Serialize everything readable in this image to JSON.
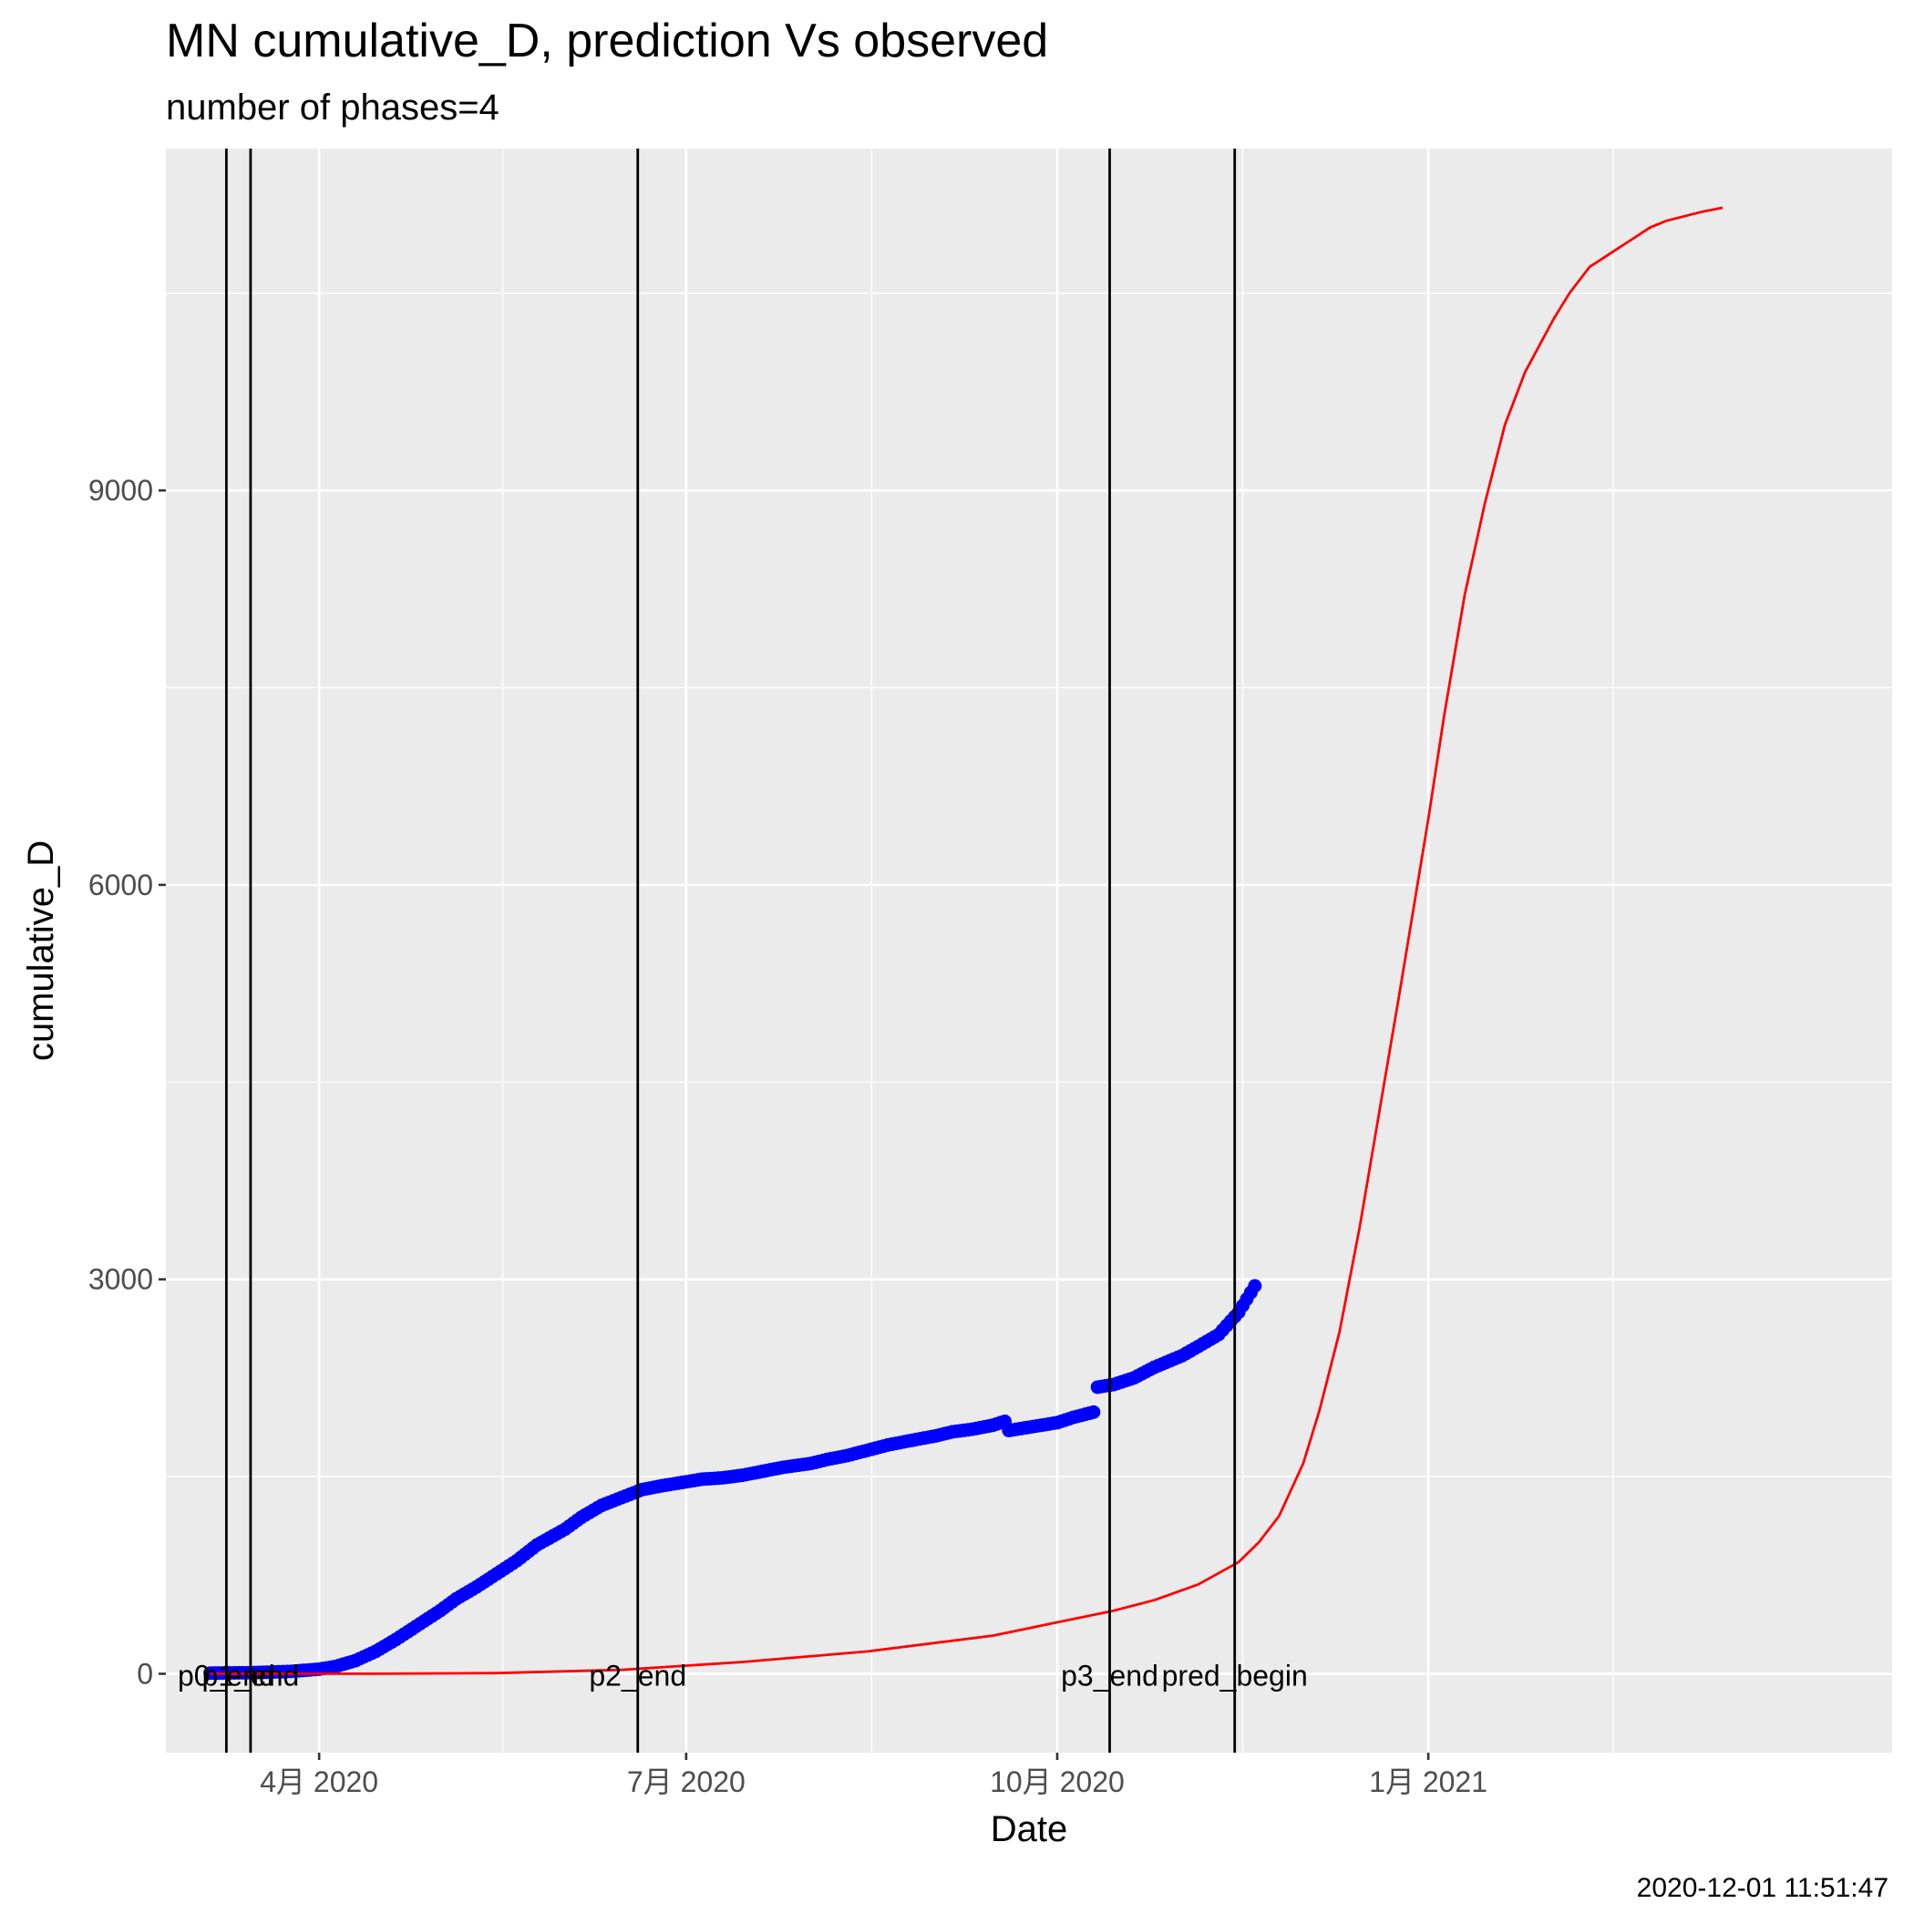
{
  "chart_data": {
    "type": "line",
    "title": "MN cumulative_D,  prediction Vs observed",
    "subtitle": "number of phases=4",
    "xlabel": "Date",
    "ylabel": "cumulative_D",
    "caption": "2020-12-01 11:51:47",
    "xlim": [
      "2020-02-23",
      "2021-04-26"
    ],
    "ylim": [
      -600,
      11600
    ],
    "grid": true,
    "x_ticks": [
      {
        "date": "2020-04-01",
        "label": "4月 2020"
      },
      {
        "date": "2020-07-01",
        "label": "7月 2020"
      },
      {
        "date": "2020-10-01",
        "label": "10月 2020"
      },
      {
        "date": "2021-01-01",
        "label": "1月 2021"
      }
    ],
    "y_ticks": [
      0,
      3000,
      6000,
      9000
    ],
    "phase_lines": [
      {
        "date": "2020-03-09",
        "label": "p0_end"
      },
      {
        "date": "2020-03-15",
        "label": "p1_end"
      },
      {
        "date": "2020-06-19",
        "label": "p2_end"
      },
      {
        "date": "2020-10-14",
        "label": "p3_end"
      },
      {
        "date": "2020-11-14",
        "label": "pred_begin"
      }
    ],
    "series": [
      {
        "color": "#0000ff",
        "style": "points",
        "x": [
          "2020-03-05",
          "2020-03-15",
          "2020-03-25",
          "2020-04-01",
          "2020-04-05",
          "2020-04-10",
          "2020-04-15",
          "2020-04-20",
          "2020-04-25",
          "2020-05-01",
          "2020-05-05",
          "2020-05-10",
          "2020-05-15",
          "2020-05-20",
          "2020-05-25",
          "2020-06-01",
          "2020-06-05",
          "2020-06-10",
          "2020-06-15",
          "2020-06-20",
          "2020-06-25",
          "2020-07-01",
          "2020-07-05",
          "2020-07-10",
          "2020-07-15",
          "2020-07-20",
          "2020-07-25",
          "2020-08-01",
          "2020-08-05",
          "2020-08-10",
          "2020-08-15",
          "2020-08-20",
          "2020-08-25",
          "2020-09-01",
          "2020-09-05",
          "2020-09-10",
          "2020-09-15",
          "2020-09-18",
          "2020-09-19",
          "2020-09-25",
          "2020-10-01",
          "2020-10-05",
          "2020-10-10",
          "2020-10-11",
          "2020-10-15",
          "2020-10-20",
          "2020-10-25",
          "2020-11-01",
          "2020-11-05",
          "2020-11-10",
          "2020-11-15",
          "2020-11-19"
        ],
        "y": [
          5,
          8,
          18,
          35,
          55,
          100,
          170,
          260,
          360,
          480,
          570,
          660,
          760,
          860,
          980,
          1100,
          1190,
          1280,
          1340,
          1400,
          1430,
          1460,
          1480,
          1490,
          1510,
          1540,
          1570,
          1600,
          1630,
          1660,
          1700,
          1740,
          1770,
          1810,
          1840,
          1860,
          1890,
          1920,
          1850,
          1880,
          1910,
          1950,
          1990,
          2180,
          2200,
          2250,
          2330,
          2420,
          2490,
          2580,
          2750,
          2950
        ]
      },
      {
        "color": "#ff0000",
        "style": "line",
        "x": [
          "2020-03-05",
          "2020-04-15",
          "2020-05-15",
          "2020-06-15",
          "2020-07-15",
          "2020-08-15",
          "2020-09-15",
          "2020-10-15",
          "2020-10-25",
          "2020-11-05",
          "2020-11-15",
          "2020-11-20",
          "2020-11-25",
          "2020-12-01",
          "2020-12-05",
          "2020-12-10",
          "2020-12-15",
          "2020-12-20",
          "2020-12-25",
          "2021-01-01",
          "2021-01-05",
          "2021-01-10",
          "2021-01-15",
          "2021-01-20",
          "2021-01-25",
          "2021-02-01",
          "2021-02-05",
          "2021-02-10",
          "2021-02-15",
          "2021-02-20",
          "2021-02-25",
          "2021-03-01",
          "2021-03-10",
          "2021-03-15"
        ],
        "y": [
          0,
          0,
          5,
          30,
          90,
          170,
          290,
          480,
          560,
          680,
          850,
          1000,
          1200,
          1600,
          2000,
          2600,
          3400,
          4300,
          5200,
          6500,
          7300,
          8200,
          8900,
          9500,
          9900,
          10300,
          10500,
          10700,
          10800,
          10900,
          11000,
          11050,
          11120,
          11150
        ]
      }
    ]
  }
}
